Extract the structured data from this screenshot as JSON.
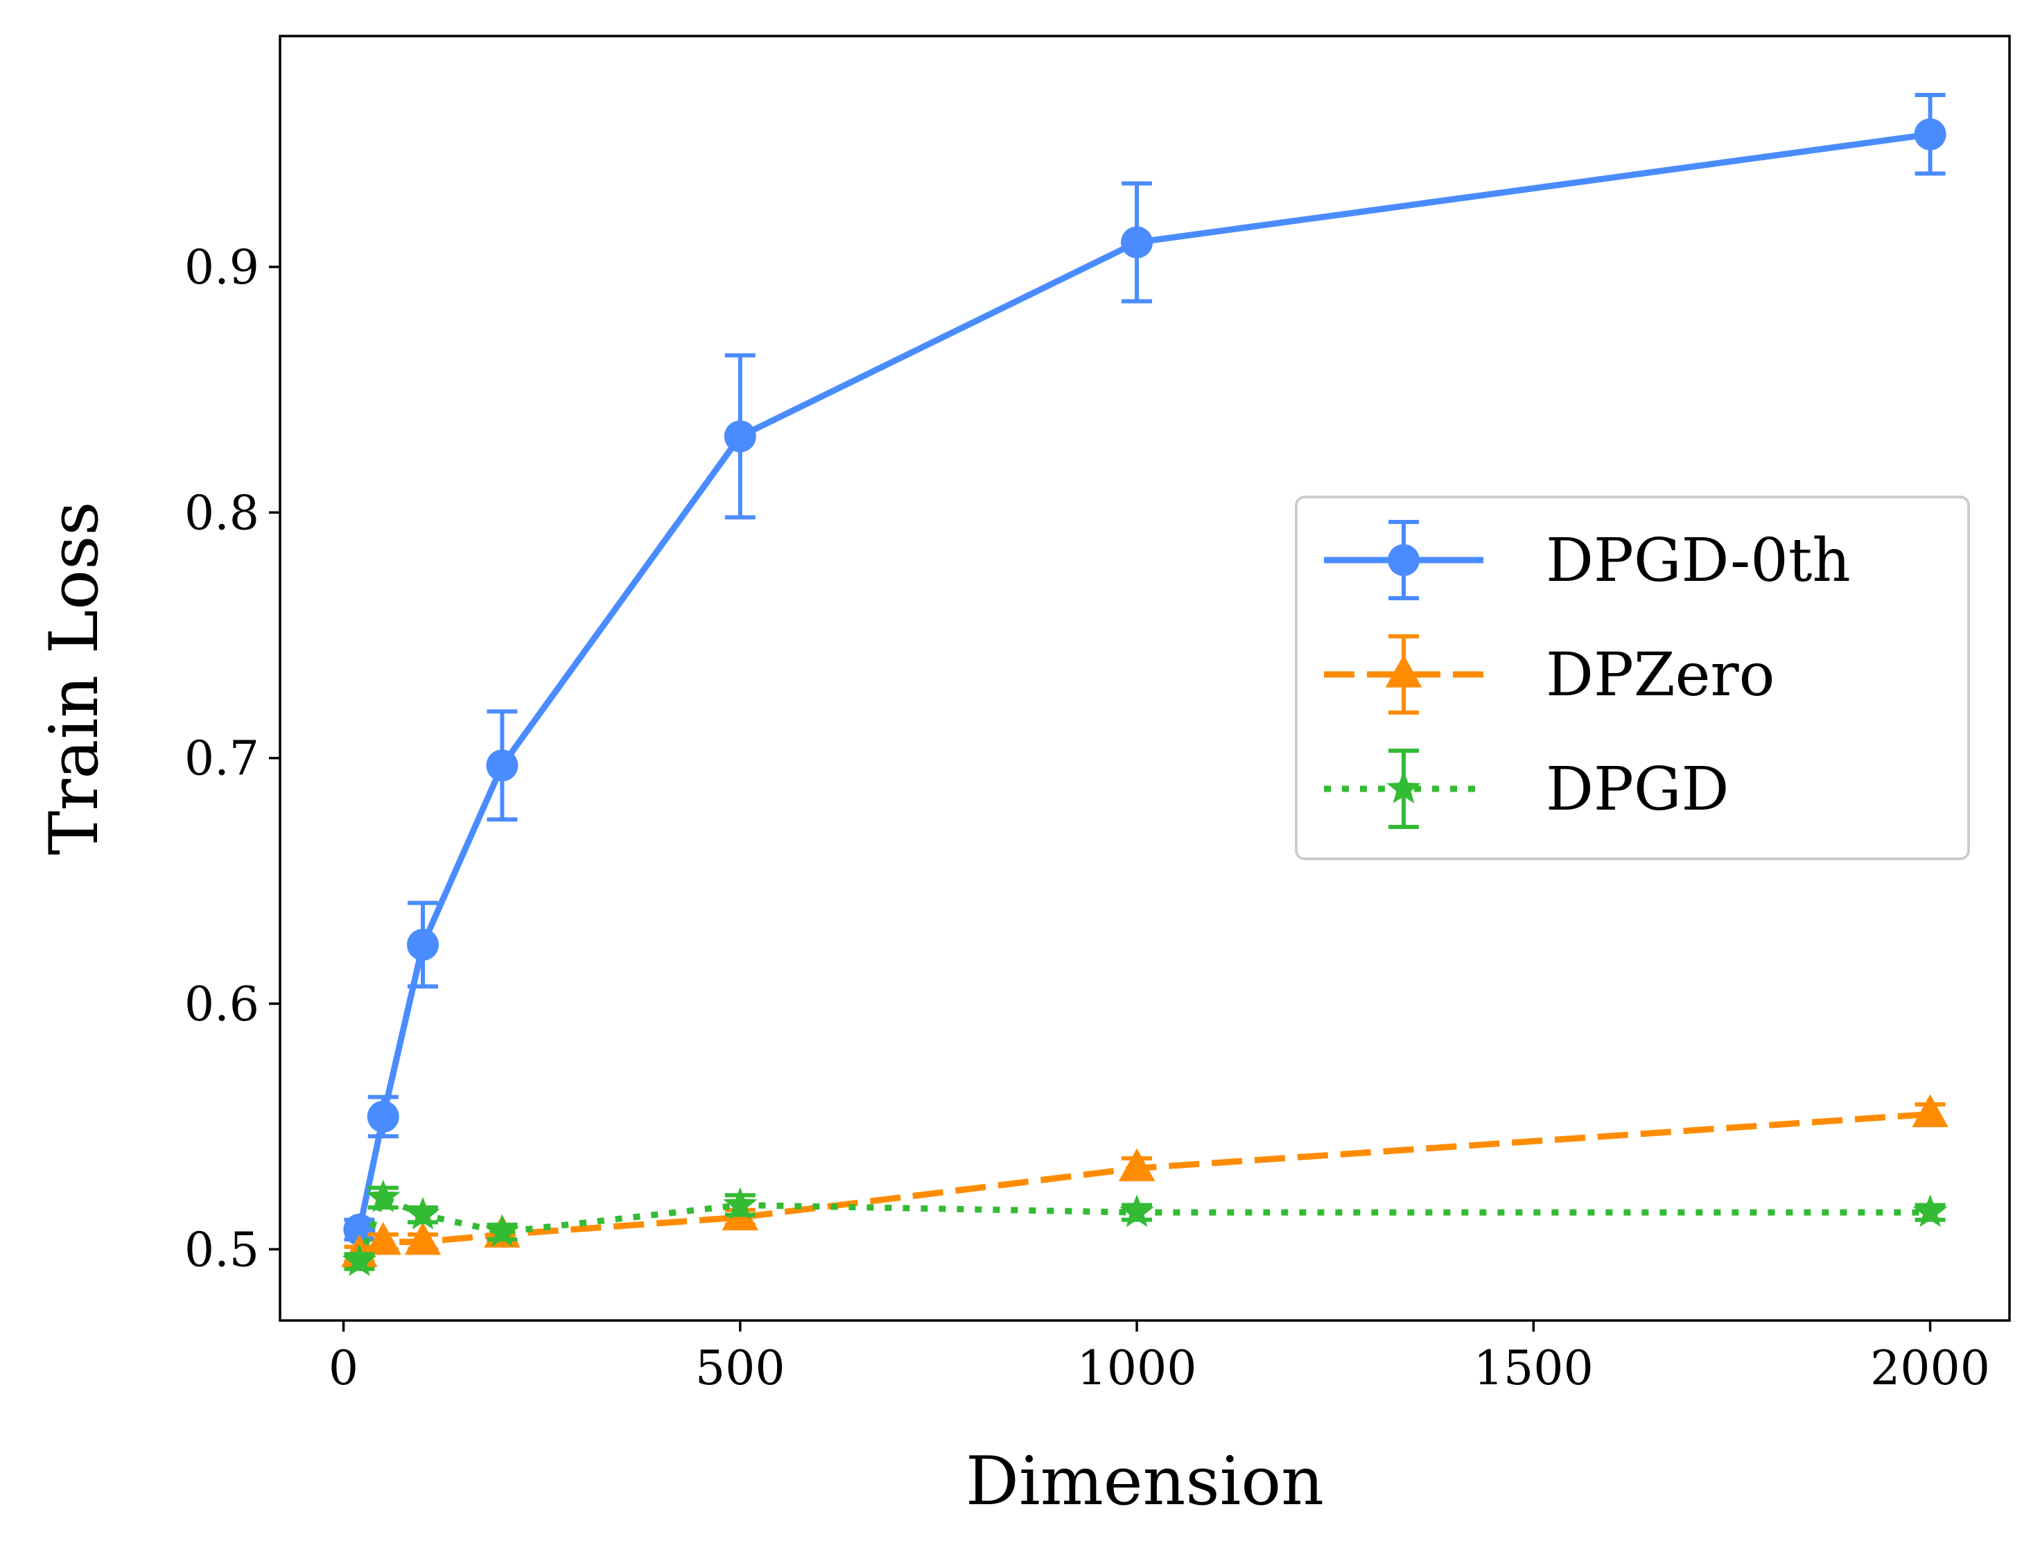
{
  "chart_data": {
    "type": "line",
    "title": "",
    "xlabel": "Dimension",
    "ylabel": "Train Loss",
    "xlim": [
      -80,
      2100
    ],
    "ylim": [
      0.471,
      0.994
    ],
    "xticks": [
      0,
      500,
      1000,
      1500,
      2000
    ],
    "xtick_labels": [
      "0",
      "500",
      "1000",
      "1500",
      "2000"
    ],
    "yticks": [
      0.5,
      0.6,
      0.7,
      0.8,
      0.9
    ],
    "ytick_labels": [
      "0.5",
      "0.6",
      "0.7",
      "0.8",
      "0.9"
    ],
    "grid": false,
    "legend_position": "center-right",
    "x": [
      20,
      50,
      100,
      200,
      500,
      1000,
      2000
    ],
    "series": [
      {
        "name": "DPGD-0th",
        "color": "#4a8cff",
        "line_style": "solid",
        "marker": "circle",
        "values": [
          0.508,
          0.554,
          0.624,
          0.697,
          0.831,
          0.91,
          0.954
        ],
        "errors": [
          0.004,
          0.008,
          0.017,
          0.022,
          0.033,
          0.024,
          0.016
        ]
      },
      {
        "name": "DPZero",
        "color": "#ff8c00",
        "line_style": "dashed",
        "marker": "triangle",
        "values": [
          0.498,
          0.503,
          0.503,
          0.506,
          0.513,
          0.533,
          0.555
        ],
        "errors": [
          0.003,
          0.003,
          0.003,
          0.003,
          0.003,
          0.004,
          0.004
        ]
      },
      {
        "name": "DPGD",
        "color": "#33bb33",
        "line_style": "dotted",
        "marker": "star",
        "values": [
          0.495,
          0.521,
          0.514,
          0.507,
          0.518,
          0.515,
          0.515
        ],
        "errors": [
          0.003,
          0.004,
          0.003,
          0.003,
          0.004,
          0.003,
          0.003
        ]
      }
    ]
  }
}
